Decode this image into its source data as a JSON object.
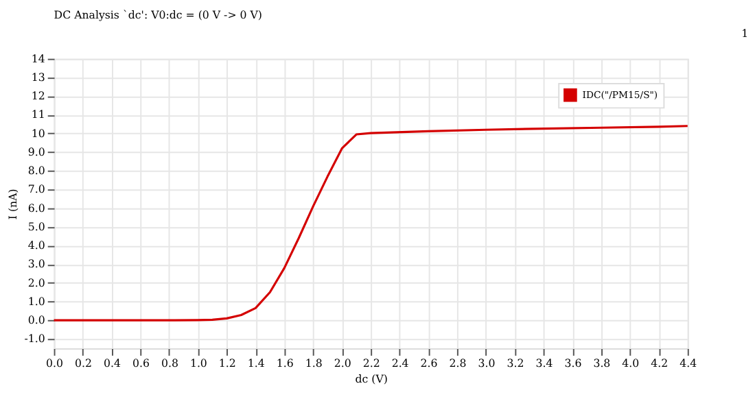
{
  "chart_data": {
    "type": "line",
    "title": "DC Analysis `dc': V0:dc = (0 V -> 0 V)",
    "xlabel": "dc (V)",
    "ylabel": "I (nA)",
    "annotations": [
      "1"
    ],
    "x": [
      0.0,
      0.2,
      0.4,
      0.6,
      0.8,
      1.0,
      1.1,
      1.2,
      1.3,
      1.4,
      1.5,
      1.6,
      1.7,
      1.8,
      1.9,
      2.0,
      2.1,
      2.2,
      2.6,
      3.0,
      3.4,
      3.8,
      4.2,
      4.4
    ],
    "series": [
      {
        "name": "IDC(\"/PM15/S\")",
        "color": "#d40000",
        "values": [
          0.0,
          0.0,
          0.0,
          0.0,
          0.0,
          0.01,
          0.03,
          0.1,
          0.28,
          0.65,
          1.5,
          2.8,
          4.4,
          6.1,
          7.7,
          9.2,
          9.95,
          10.02,
          10.12,
          10.2,
          10.26,
          10.31,
          10.36,
          10.4
        ]
      }
    ],
    "xlim": [
      0,
      4.4
    ],
    "xticks": [
      {
        "value": 0,
        "label": "0.0"
      },
      0.2,
      0.4,
      0.6,
      0.8,
      {
        "value": 1,
        "label": "1.0"
      },
      1.2,
      1.4,
      1.6,
      1.8,
      {
        "value": 2,
        "label": "2.0"
      },
      2.2,
      2.4,
      2.6,
      2.8,
      {
        "value": 3,
        "label": "3.0"
      },
      3.2,
      3.4,
      3.6,
      3.8,
      {
        "value": 4,
        "label": "4.0"
      },
      4.2,
      4.4
    ],
    "ylim": [
      -1.5,
      14
    ],
    "yticks": [
      {
        "value": -1,
        "label": "-1.0"
      },
      {
        "value": 0,
        "label": "0.0"
      },
      {
        "value": 1,
        "label": "1.0"
      },
      {
        "value": 2,
        "label": "2.0"
      },
      {
        "value": 3,
        "label": "3.0"
      },
      {
        "value": 4,
        "label": "4.0"
      },
      {
        "value": 5,
        "label": "5.0"
      },
      {
        "value": 6,
        "label": "6.0"
      },
      {
        "value": 7,
        "label": "7.0"
      },
      {
        "value": 8,
        "label": "8.0"
      },
      {
        "value": 9,
        "label": "9.0"
      },
      10,
      11,
      12,
      13,
      14
    ],
    "grid": true,
    "legend": "top right",
    "marker": "none",
    "line_style": "solid"
  }
}
